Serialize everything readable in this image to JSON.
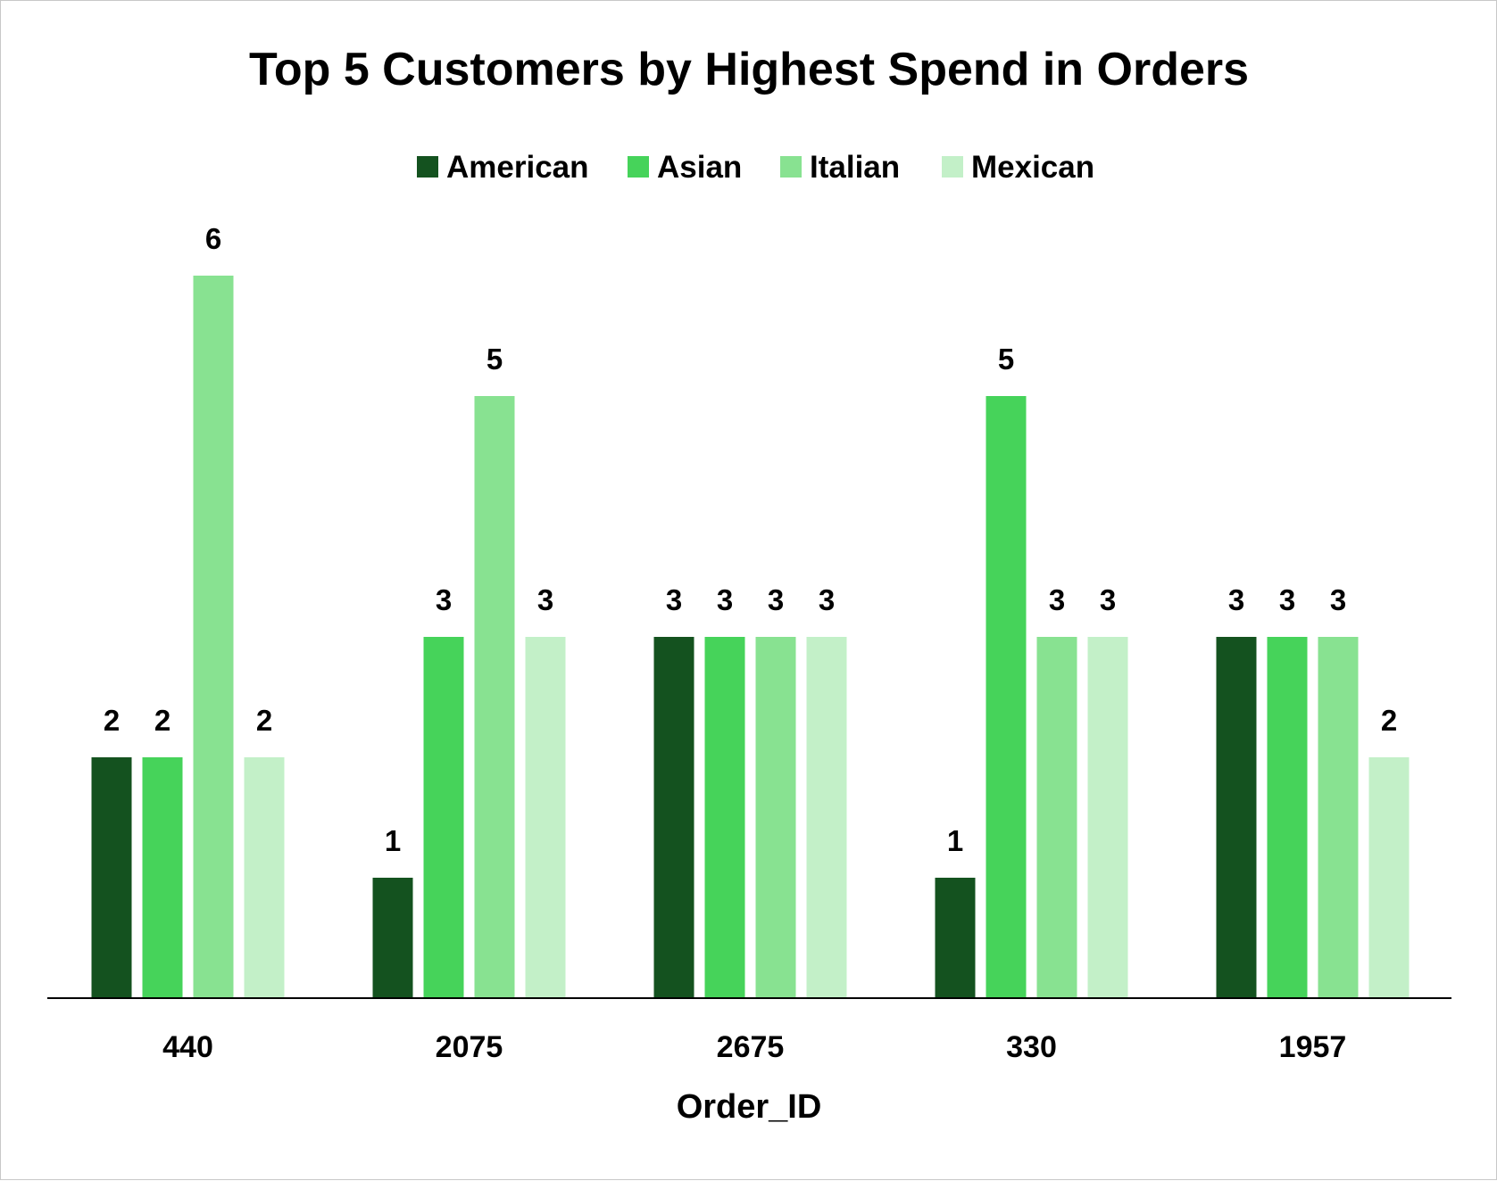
{
  "chart_data": {
    "type": "bar",
    "title": "Top 5 Customers by Highest Spend in Orders",
    "xlabel": "Order_ID",
    "ylabel": "",
    "categories": [
      "440",
      "2075",
      "2675",
      "330",
      "1957"
    ],
    "series": [
      {
        "name": "American",
        "color": "#14521f",
        "values": [
          2,
          1,
          3,
          1,
          3
        ]
      },
      {
        "name": "Asian",
        "color": "#46d35a",
        "values": [
          2,
          3,
          3,
          5,
          3
        ]
      },
      {
        "name": "Italian",
        "color": "#88e291",
        "values": [
          6,
          5,
          3,
          3,
          3
        ]
      },
      {
        "name": "Mexican",
        "color": "#c3f0c8",
        "values": [
          2,
          3,
          3,
          3,
          2
        ]
      }
    ],
    "ylim": [
      0,
      6
    ],
    "grid": false,
    "legend": "top-center",
    "data_labels": true
  }
}
